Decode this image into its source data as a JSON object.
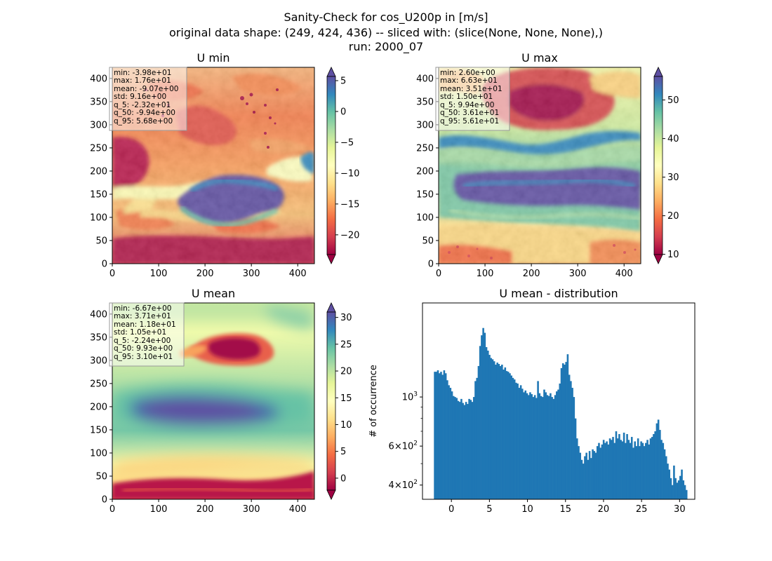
{
  "figure": {
    "title_lines": [
      "Sanity-Check for cos_U200p in [m/s]",
      "original data shape: (249, 424, 436) -- sliced with: (slice(None, None, None),)",
      "run: 2000_07"
    ]
  },
  "chart_data": [
    {
      "type": "heatmap",
      "title": "U min",
      "colormap": "Spectral",
      "xlim": [
        0,
        436
      ],
      "ylim": [
        0,
        424
      ],
      "xticks": [
        0,
        100,
        200,
        300,
        400
      ],
      "yticks": [
        0,
        50,
        100,
        150,
        200,
        250,
        300,
        350,
        400
      ],
      "colorbar": {
        "min": -23.2,
        "max": 5.68,
        "ticks": [
          5,
          0,
          -5,
          -10,
          -15,
          -20
        ],
        "tick_labels": [
          "5",
          "0",
          "−5",
          "−10",
          "−15",
          "−20"
        ],
        "extend": "both"
      },
      "stats": [
        "min: -3.98e+01",
        "max: 1.76e+01",
        "mean: -9.07e+00",
        "std: 9.16e+00",
        "q_5: -2.32e+01",
        "q_50: -9.94e+00",
        "q_95: 5.68e+00"
      ]
    },
    {
      "type": "heatmap",
      "title": "U max",
      "colormap": "Spectral",
      "xlim": [
        0,
        436
      ],
      "ylim": [
        0,
        424
      ],
      "xticks": [
        0,
        100,
        200,
        300,
        400
      ],
      "yticks": [
        0,
        50,
        100,
        150,
        200,
        250,
        300,
        350,
        400
      ],
      "colorbar": {
        "min": 9.94,
        "max": 56.1,
        "ticks": [
          50,
          40,
          30,
          20,
          10
        ],
        "tick_labels": [
          "50",
          "40",
          "30",
          "20",
          "10"
        ],
        "extend": "both"
      },
      "stats": [
        "min: 2.60e+00",
        "max: 6.63e+01",
        "mean: 3.51e+01",
        "std: 1.50e+01",
        "q_5: 9.94e+00",
        "q_50: 3.61e+01",
        "q_95: 5.61e+01"
      ]
    },
    {
      "type": "heatmap",
      "title": "U mean",
      "colormap": "Spectral",
      "xlim": [
        0,
        436
      ],
      "ylim": [
        0,
        424
      ],
      "xticks": [
        0,
        100,
        200,
        300,
        400
      ],
      "yticks": [
        0,
        50,
        100,
        150,
        200,
        250,
        300,
        350,
        400
      ],
      "colorbar": {
        "min": -2.24,
        "max": 31.0,
        "ticks": [
          30,
          25,
          20,
          15,
          10,
          5,
          0
        ],
        "tick_labels": [
          "30",
          "25",
          "20",
          "15",
          "10",
          "5",
          "0"
        ],
        "extend": "both"
      },
      "stats": [
        "min: -6.67e+00",
        "max: 3.71e+01",
        "mean: 1.18e+01",
        "std: 1.05e+01",
        "q_5: -2.24e+00",
        "q_50: 9.93e+00",
        "q_95: 3.10e+01"
      ]
    },
    {
      "type": "bar",
      "title": "U mean - distribution",
      "ylabel": "# of occurrence",
      "yscale": "log",
      "color": "#1f77b4",
      "xlim": [
        -3.8,
        32.0
      ],
      "ylim": [
        345,
        2660
      ],
      "xticks": [
        0,
        5,
        10,
        15,
        20,
        25,
        30
      ],
      "yticks": [
        {
          "value": 400,
          "label_base": "4×10",
          "label_exp": "2"
        },
        {
          "value": 600,
          "label_base": "6×10",
          "label_exp": "2"
        },
        {
          "value": 1000,
          "label_base": "10",
          "label_exp": "3"
        }
      ],
      "minor_yticks": [
        500,
        700,
        800,
        900
      ],
      "bin_range": [
        -2.3,
        31.0
      ],
      "bin_counts": [
        1300,
        1300,
        1320,
        1280,
        1300,
        1260,
        1320,
        1280,
        1190,
        1130,
        1100,
        1060,
        1010,
        1000,
        990,
        960,
        950,
        980,
        940,
        920,
        950,
        930,
        980,
        970,
        950,
        1000,
        1180,
        1220,
        1380,
        1700,
        1900,
        2050,
        1950,
        1680,
        1620,
        1550,
        1500,
        1480,
        1450,
        1400,
        1430,
        1410,
        1380,
        1400,
        1330,
        1360,
        1310,
        1300,
        1280,
        1250,
        1220,
        1200,
        1160,
        1150,
        1100,
        1130,
        1090,
        1050,
        1070,
        1040,
        1020,
        1050,
        1030,
        1000,
        1020,
        990,
        1180,
        1040,
        1010,
        1000,
        1080,
        1050,
        1020,
        1010,
        1040,
        1000,
        980,
        1020,
        1060,
        1080,
        1150,
        1350,
        1420,
        1400,
        1440,
        1560,
        1260,
        1180,
        1100,
        1000,
        800,
        650,
        600,
        560,
        520,
        500,
        540,
        560,
        520,
        570,
        530,
        580,
        570,
        560,
        600,
        620,
        590,
        610,
        640,
        620,
        630,
        610,
        650,
        640,
        660,
        620,
        700,
        650,
        680,
        640,
        630,
        690,
        620,
        680,
        640,
        620,
        660,
        590,
        630,
        600,
        650,
        600,
        630,
        620,
        600,
        620,
        640,
        610,
        650,
        660,
        680,
        700,
        760,
        790,
        710,
        640,
        620,
        580,
        540,
        500,
        470,
        430,
        400,
        490,
        430,
        410,
        420,
        440,
        470,
        420,
        400,
        380
      ]
    }
  ]
}
